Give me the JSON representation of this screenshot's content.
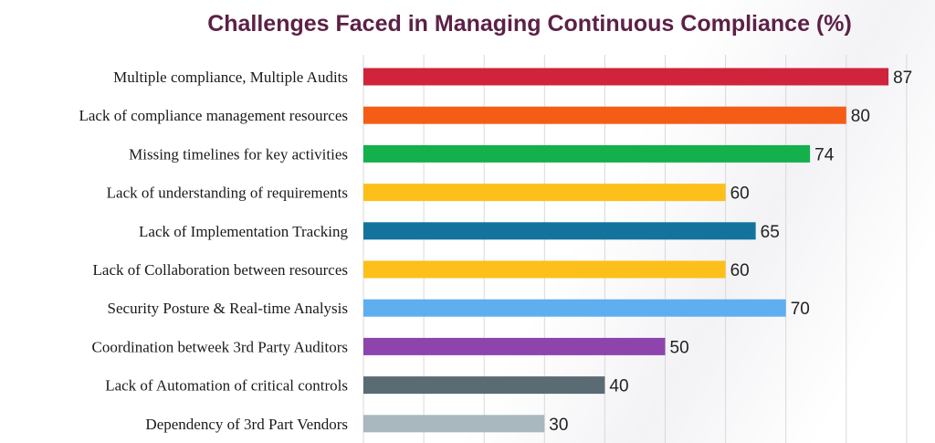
{
  "chart_data": {
    "type": "bar",
    "orientation": "horizontal",
    "title": "Challenges Faced in Managing Continuous Compliance (%)",
    "categories": [
      "Multiple compliance, Multiple Audits",
      "Lack of compliance management resources",
      "Missing timelines for key activities",
      "Lack of understanding of requirements",
      "Lack of Implementation Tracking",
      "Lack of Collaboration between resources",
      "Security Posture & Real-time Analysis",
      "Coordination betweek 3rd Party Auditors",
      "Lack of Automation of critical controls",
      "Dependency of 3rd Part Vendors"
    ],
    "values": [
      87,
      80,
      74,
      60,
      65,
      60,
      70,
      50,
      40,
      30
    ],
    "colors": [
      "#d0233c",
      "#f55d17",
      "#13b04b",
      "#fdbf1a",
      "#14739c",
      "#fdbf1a",
      "#5eaef0",
      "#8e44ad",
      "#5a6b73",
      "#a9b7bf"
    ],
    "xlim": [
      0,
      90
    ],
    "grid": true,
    "legend": "none",
    "data_labels": true
  }
}
